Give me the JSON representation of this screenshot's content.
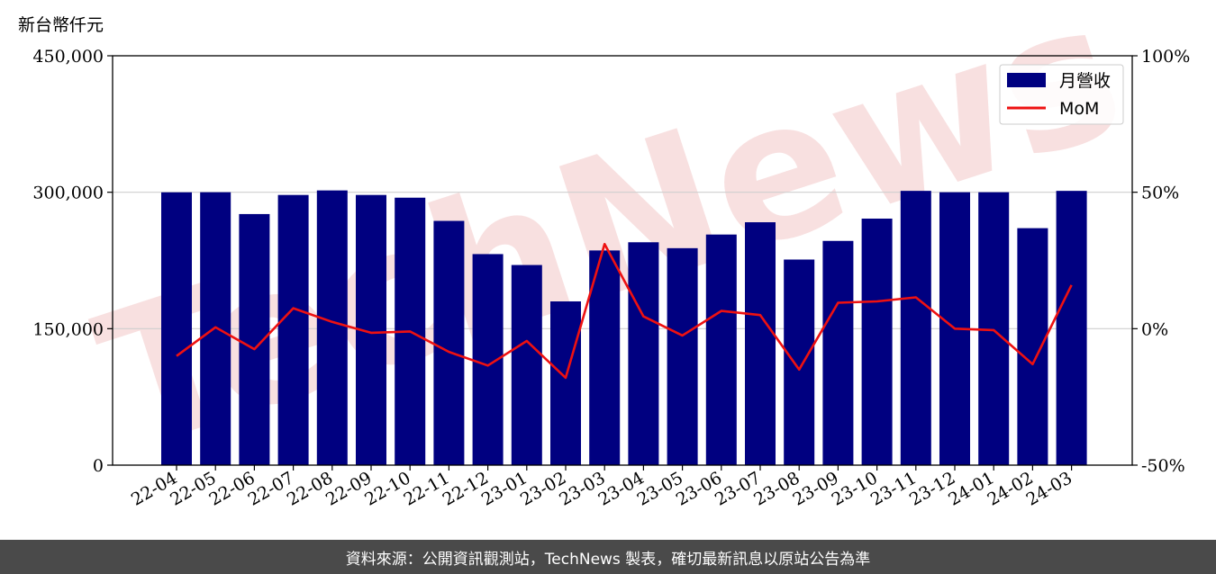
{
  "y_unit_label": "新台幣仟元",
  "footer_text": "資料來源：公開資訊觀測站，TechNews 製表，確切最新訊息以原站公告為準",
  "watermark_text": "TechNews",
  "colors": {
    "bar": "#000080",
    "line": "#ee1111",
    "grid": "#cfcfcf",
    "footer_bg": "#4a4a4a",
    "watermark": "#f3c7c7"
  },
  "chart_data": {
    "type": "bar",
    "categories": [
      "22-04",
      "22-05",
      "22-06",
      "22-07",
      "22-08",
      "22-09",
      "22-10",
      "22-11",
      "22-12",
      "23-01",
      "23-02",
      "23-03",
      "23-04",
      "23-05",
      "23-06",
      "23-07",
      "23-08",
      "23-09",
      "23-10",
      "23-11",
      "23-12",
      "24-01",
      "24-02",
      "24-03"
    ],
    "series": [
      {
        "name": "月營收",
        "axis": "left",
        "type": "bar",
        "values": [
          299900,
          300000,
          276000,
          297000,
          302000,
          297000,
          294000,
          268500,
          232000,
          220000,
          180000,
          236000,
          245000,
          238500,
          253500,
          267000,
          226000,
          246500,
          271000,
          301500,
          300000,
          300000,
          260500,
          301500
        ]
      },
      {
        "name": "MoM",
        "axis": "right",
        "type": "line",
        "values": [
          -10.0,
          0.5,
          -7.5,
          7.5,
          2.5,
          -1.5,
          -1.0,
          -8.5,
          -13.5,
          -4.5,
          -18.0,
          31.0,
          4.5,
          -2.5,
          6.5,
          5.0,
          -15.0,
          9.5,
          10.0,
          11.5,
          0.0,
          -0.5,
          -13.0,
          16.0
        ]
      }
    ],
    "y_left": {
      "range": [
        0,
        450000
      ],
      "ticks": [
        0,
        150000,
        300000,
        450000
      ],
      "tick_labels": [
        "0",
        "150,000",
        "300,000",
        "450,000"
      ]
    },
    "y_right": {
      "range": [
        -50,
        100
      ],
      "ticks": [
        -50,
        0,
        50,
        100
      ],
      "tick_labels": [
        "-50%",
        "0%",
        "50%",
        "100%"
      ]
    },
    "grid": "horizontal",
    "legend": {
      "position": "top-right",
      "entries": [
        "月營收",
        "MoM"
      ]
    }
  }
}
